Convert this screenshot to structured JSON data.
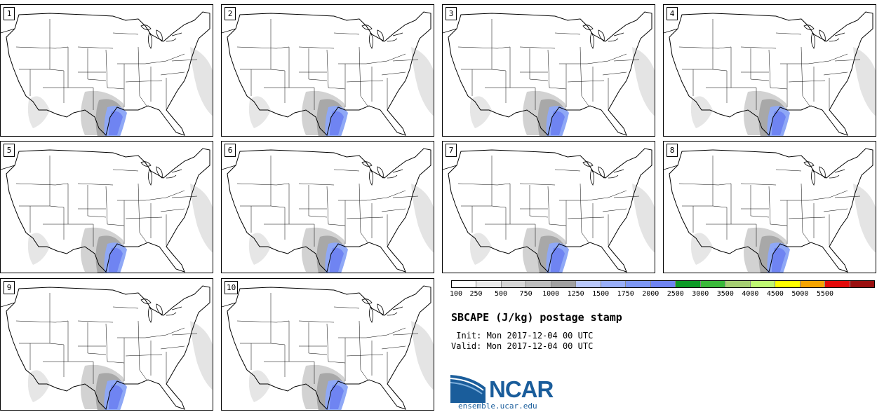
{
  "stamps": [
    {
      "label": "1"
    },
    {
      "label": "2"
    },
    {
      "label": "3"
    },
    {
      "label": "4"
    },
    {
      "label": "5"
    },
    {
      "label": "6"
    },
    {
      "label": "7"
    },
    {
      "label": "8"
    },
    {
      "label": "9"
    },
    {
      "label": "10"
    }
  ],
  "colorbar": {
    "colors": [
      "#ffffff",
      "#ebebeb",
      "#d6d6d6",
      "#bdbdbd",
      "#a0a0a0",
      "#b9c8fb",
      "#98aef9",
      "#7d97f5",
      "#6f84f2",
      "#0c9a26",
      "#3ab93a",
      "#a7cf73",
      "#bff872",
      "#ffff00",
      "#f5a300",
      "#e30909",
      "#9a1010"
    ],
    "ticks": [
      "100",
      "250",
      "500",
      "750",
      "1000",
      "1250",
      "1500",
      "1750",
      "2000",
      "2500",
      "3000",
      "3500",
      "4000",
      "4500",
      "5000",
      "5500"
    ]
  },
  "header": {
    "title": "SBCAPE (J/kg) postage stamp",
    "init": " Init: Mon 2017-12-04 00 UTC",
    "valid": "Valid: Mon 2017-12-04 00 UTC"
  },
  "logo": {
    "name": "NCAR",
    "site": "ensemble.ucar.edu",
    "brand_color": "#1a5d9b"
  }
}
